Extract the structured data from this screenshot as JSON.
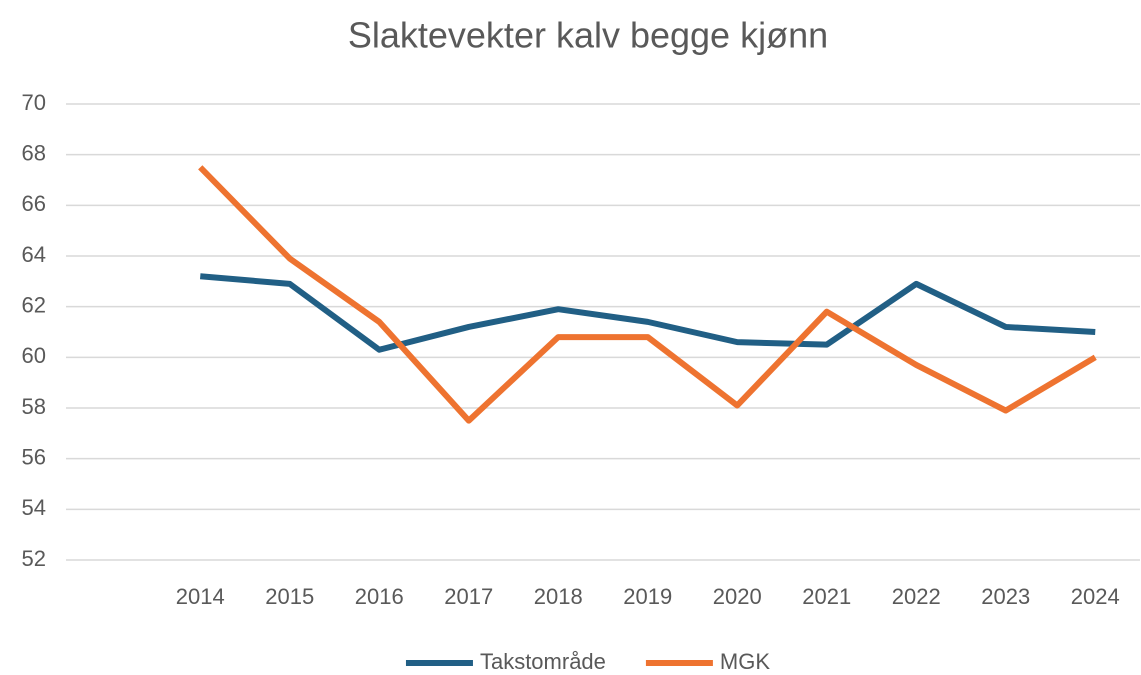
{
  "chart_data": {
    "type": "line",
    "title": "Slaktevekter kalv begge kjønn",
    "categories": [
      null,
      "2014",
      "2015",
      "2016",
      "2017",
      "2018",
      "2019",
      "2020",
      "2021",
      "2022",
      "2023",
      "2024"
    ],
    "series": [
      {
        "name": "Takstområde",
        "color": "#215f85",
        "values": [
          null,
          63.2,
          62.9,
          60.3,
          61.2,
          61.9,
          61.4,
          60.6,
          60.5,
          62.9,
          61.2,
          61.0
        ]
      },
      {
        "name": "MGK",
        "color": "#ee7330",
        "values": [
          null,
          67.5,
          63.9,
          61.4,
          57.5,
          60.8,
          60.8,
          58.1,
          61.8,
          59.7,
          57.9,
          60.0
        ]
      }
    ],
    "ylim": [
      52,
      70
    ],
    "yticks": [
      52,
      54,
      56,
      58,
      60,
      62,
      64,
      66,
      68,
      70
    ],
    "grid": true,
    "legend": "bottom"
  }
}
